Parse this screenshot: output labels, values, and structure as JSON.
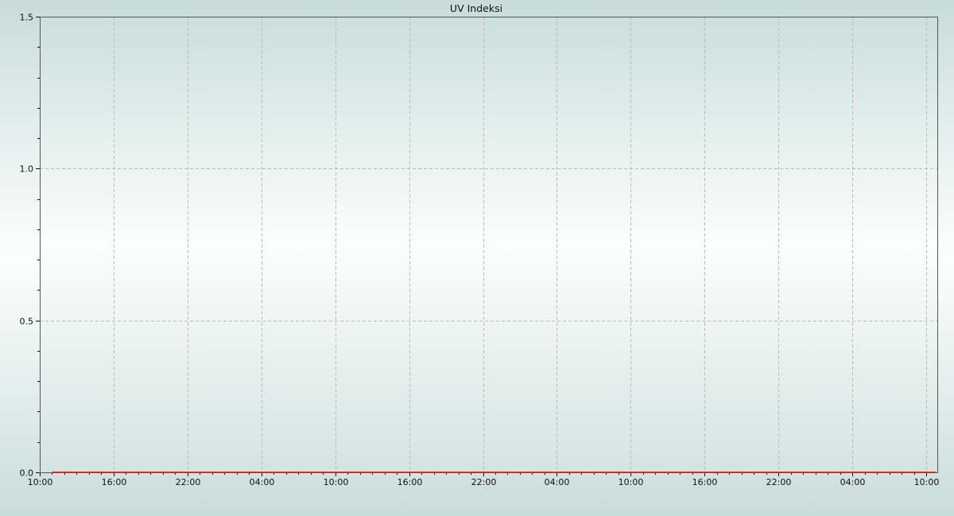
{
  "chart_data": {
    "type": "line",
    "title": "UV Indeksi",
    "xlabel": "",
    "ylabel": "",
    "ylim": [
      0,
      1.5
    ],
    "yticks": [
      "0.0",
      "0.5",
      "1.0",
      "1.5"
    ],
    "xticks": [
      "10:00",
      "16:00",
      "22:00",
      "04:00",
      "10:00",
      "16:00",
      "22:00",
      "04:00",
      "10:00",
      "16:00",
      "22:00",
      "04:00",
      "10:00"
    ],
    "grid": true,
    "legend": "none",
    "series": [
      {
        "color": "#e8332c",
        "x_start": "11:00",
        "x_step_hours": 1,
        "values": [
          0,
          0,
          0,
          0,
          0,
          0,
          0,
          0,
          0,
          0,
          0,
          0,
          0,
          0,
          0,
          0,
          0,
          0,
          0,
          0,
          0,
          0,
          0,
          0,
          0,
          0,
          0,
          0,
          0,
          0,
          0,
          0,
          0,
          0,
          0,
          0,
          0,
          0,
          0,
          0,
          0,
          0,
          0,
          0,
          0,
          0,
          0,
          0,
          0,
          0,
          0,
          0,
          0,
          0,
          0,
          0,
          0,
          0,
          0,
          0,
          0,
          0,
          0,
          0,
          0,
          0,
          0,
          0,
          0,
          0,
          0,
          0
        ]
      }
    ]
  }
}
